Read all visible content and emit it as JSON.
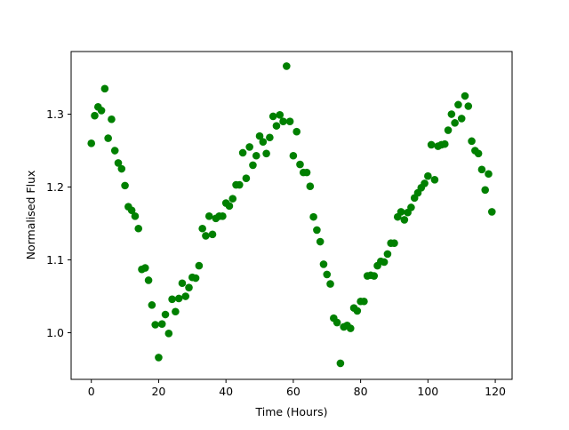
{
  "chart_data": {
    "type": "scatter",
    "title": "",
    "xlabel": "Time (Hours)",
    "ylabel": "Normalised Flux",
    "xlim": [
      -6,
      125
    ],
    "ylim": [
      0.936,
      1.386
    ],
    "xticks": [
      0,
      20,
      40,
      60,
      80,
      100,
      120
    ],
    "yticks": [
      1.0,
      1.1,
      1.2,
      1.3
    ],
    "xtick_labels": [
      "0",
      "20",
      "40",
      "60",
      "80",
      "100",
      "120"
    ],
    "ytick_labels": [
      "1.0",
      "1.1",
      "1.2",
      "1.3"
    ],
    "grid": false,
    "marker_color": "#008000",
    "points": [
      [
        0,
        1.26
      ],
      [
        1,
        1.298
      ],
      [
        2,
        1.31
      ],
      [
        3,
        1.305
      ],
      [
        4,
        1.335
      ],
      [
        5,
        1.267
      ],
      [
        6,
        1.293
      ],
      [
        7,
        1.25
      ],
      [
        8,
        1.233
      ],
      [
        9,
        1.225
      ],
      [
        10,
        1.202
      ],
      [
        11,
        1.173
      ],
      [
        12,
        1.168
      ],
      [
        13,
        1.16
      ],
      [
        14,
        1.143
      ],
      [
        15,
        1.087
      ],
      [
        16,
        1.089
      ],
      [
        17,
        1.072
      ],
      [
        18,
        1.038
      ],
      [
        19,
        1.011
      ],
      [
        20,
        0.966
      ],
      [
        21,
        1.012
      ],
      [
        22,
        1.025
      ],
      [
        23,
        0.999
      ],
      [
        24,
        1.046
      ],
      [
        25,
        1.029
      ],
      [
        26,
        1.047
      ],
      [
        27,
        1.068
      ],
      [
        28,
        1.05
      ],
      [
        29,
        1.062
      ],
      [
        30,
        1.076
      ],
      [
        31,
        1.075
      ],
      [
        32,
        1.092
      ],
      [
        33,
        1.143
      ],
      [
        34,
        1.133
      ],
      [
        35,
        1.16
      ],
      [
        36,
        1.135
      ],
      [
        37,
        1.157
      ],
      [
        38,
        1.16
      ],
      [
        39,
        1.16
      ],
      [
        40,
        1.178
      ],
      [
        41,
        1.174
      ],
      [
        42,
        1.184
      ],
      [
        43,
        1.203
      ],
      [
        44,
        1.203
      ],
      [
        45,
        1.247
      ],
      [
        46,
        1.212
      ],
      [
        47,
        1.255
      ],
      [
        48,
        1.23
      ],
      [
        49,
        1.243
      ],
      [
        50,
        1.27
      ],
      [
        51,
        1.262
      ],
      [
        52,
        1.246
      ],
      [
        53,
        1.268
      ],
      [
        54,
        1.297
      ],
      [
        55,
        1.284
      ],
      [
        56,
        1.299
      ],
      [
        57,
        1.29
      ],
      [
        58,
        1.366
      ],
      [
        59,
        1.29
      ],
      [
        60,
        1.243
      ],
      [
        61,
        1.276
      ],
      [
        62,
        1.231
      ],
      [
        63,
        1.22
      ],
      [
        64,
        1.22
      ],
      [
        65,
        1.201
      ],
      [
        66,
        1.159
      ],
      [
        67,
        1.141
      ],
      [
        68,
        1.125
      ],
      [
        69,
        1.094
      ],
      [
        70,
        1.08
      ],
      [
        71,
        1.067
      ],
      [
        72,
        1.02
      ],
      [
        73,
        1.014
      ],
      [
        74,
        0.958
      ],
      [
        75,
        1.008
      ],
      [
        76,
        1.01
      ],
      [
        77,
        1.006
      ],
      [
        78,
        1.034
      ],
      [
        79,
        1.03
      ],
      [
        80,
        1.043
      ],
      [
        81,
        1.043
      ],
      [
        82,
        1.078
      ],
      [
        83,
        1.079
      ],
      [
        84,
        1.078
      ],
      [
        85,
        1.092
      ],
      [
        86,
        1.098
      ],
      [
        87,
        1.097
      ],
      [
        88,
        1.108
      ],
      [
        89,
        1.123
      ],
      [
        90,
        1.123
      ],
      [
        91,
        1.159
      ],
      [
        92,
        1.166
      ],
      [
        93,
        1.155
      ],
      [
        94,
        1.165
      ],
      [
        95,
        1.172
      ],
      [
        96,
        1.185
      ],
      [
        97,
        1.192
      ],
      [
        98,
        1.199
      ],
      [
        99,
        1.205
      ],
      [
        100,
        1.215
      ],
      [
        101,
        1.258
      ],
      [
        102,
        1.21
      ],
      [
        103,
        1.256
      ],
      [
        104,
        1.258
      ],
      [
        105,
        1.259
      ],
      [
        106,
        1.278
      ],
      [
        107,
        1.3
      ],
      [
        108,
        1.288
      ],
      [
        109,
        1.313
      ],
      [
        110,
        1.294
      ],
      [
        111,
        1.325
      ],
      [
        112,
        1.311
      ],
      [
        113,
        1.263
      ],
      [
        114,
        1.25
      ],
      [
        115,
        1.246
      ],
      [
        116,
        1.224
      ],
      [
        117,
        1.196
      ],
      [
        118,
        1.218
      ],
      [
        119,
        1.166
      ]
    ]
  }
}
